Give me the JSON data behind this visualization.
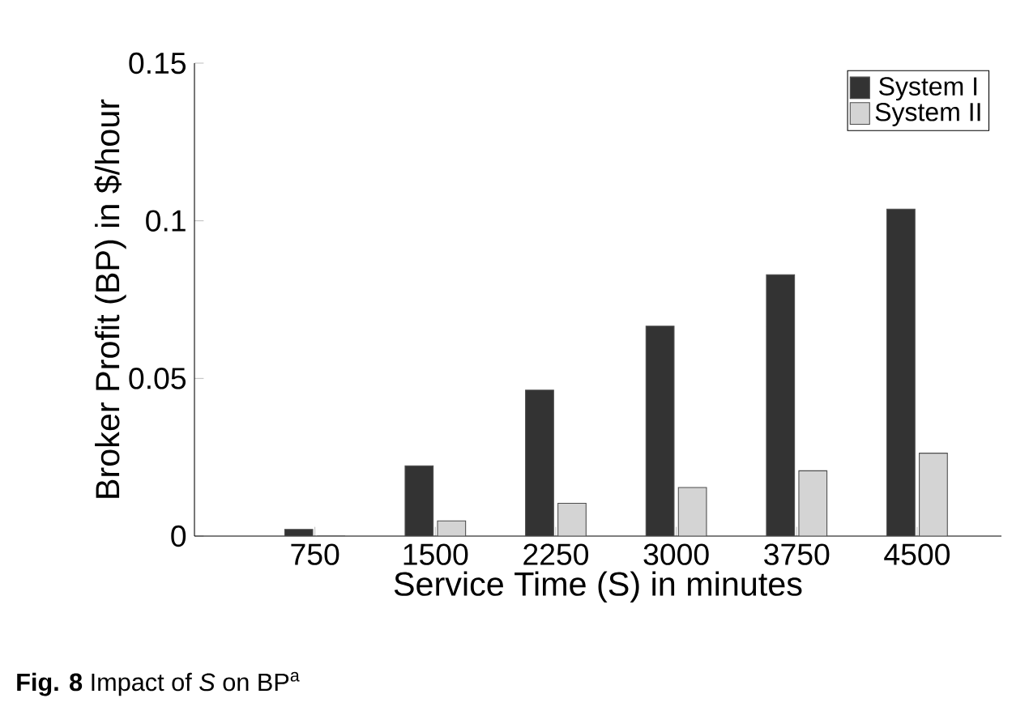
{
  "chart_data": {
    "type": "bar",
    "xlabel": "Service Time (S) in minutes",
    "ylabel": "Broker Profit (BP) in $/hour",
    "categories": [
      "750",
      "1500",
      "2250",
      "3000",
      "3750",
      "4500"
    ],
    "series": [
      {
        "name": "System I",
        "color": "#333333",
        "values": [
          0.0021,
          0.0223,
          0.0463,
          0.0666,
          0.0829,
          0.1037
        ]
      },
      {
        "name": "System II",
        "color": "#d4d4d4",
        "values": [
          0,
          0.0048,
          0.0104,
          0.0154,
          0.0207,
          0.0263
        ]
      }
    ],
    "ylim": [
      0,
      0.15
    ],
    "yticks": [
      0,
      0.05,
      0.1,
      0.15
    ],
    "legend": "top right",
    "grid": false,
    "annotations": [
      "**Fig. 8** Impact of *S* on BP$^{a}$"
    ]
  }
}
